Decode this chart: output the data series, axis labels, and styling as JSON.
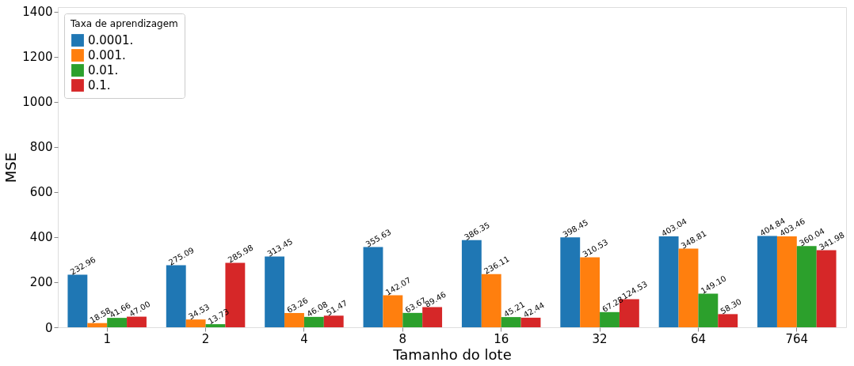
{
  "chart_data": {
    "type": "bar",
    "xlabel": "Tamanho do lote",
    "ylabel": "MSE",
    "legend_title": "Taxa de aprendizagem",
    "legend": "top left",
    "grid": false,
    "categories": [
      "1",
      "2",
      "4",
      "8",
      "16",
      "32",
      "64",
      "764"
    ],
    "ylim": [
      0,
      1420
    ],
    "yticks": [
      0,
      200,
      400,
      600,
      800,
      1000,
      1200,
      1400
    ],
    "series": [
      {
        "name": "0.0001.",
        "color": "#1f77b4",
        "values": [
          232.96,
          275.09,
          313.45,
          355.63,
          386.35,
          398.45,
          403.04,
          404.84
        ],
        "value_labels": [
          "232.96",
          "275.09",
          "313.45",
          "355.63",
          "386.35",
          "398.45",
          "403.04",
          "404.84"
        ]
      },
      {
        "name": "0.001.",
        "color": "#ff7f0e",
        "values": [
          18.58,
          34.53,
          63.26,
          142.07,
          236.11,
          310.53,
          348.81,
          403.46
        ],
        "value_labels": [
          "18.58",
          "34.53",
          "63.26",
          "142.07",
          "236.11",
          "310.53",
          "348.81",
          "403.46"
        ]
      },
      {
        "name": "0.01.",
        "color": "#2ca02c",
        "values": [
          41.66,
          13.73,
          46.08,
          63.67,
          45.21,
          67.28,
          149.1,
          360.04
        ],
        "value_labels": [
          "41.66",
          "13.73",
          "46.08",
          "63.67",
          "45.21",
          "67.28",
          "149.10",
          "360.04"
        ]
      },
      {
        "name": "0.1.",
        "color": "#d62728",
        "values": [
          47.0,
          285.98,
          51.47,
          89.46,
          42.44,
          124.53,
          58.3,
          341.98
        ],
        "value_labels": [
          "47.00",
          "285.98",
          "51.47",
          "89.46",
          "42.44",
          "124.53",
          "58.30",
          "341.98"
        ]
      }
    ]
  }
}
